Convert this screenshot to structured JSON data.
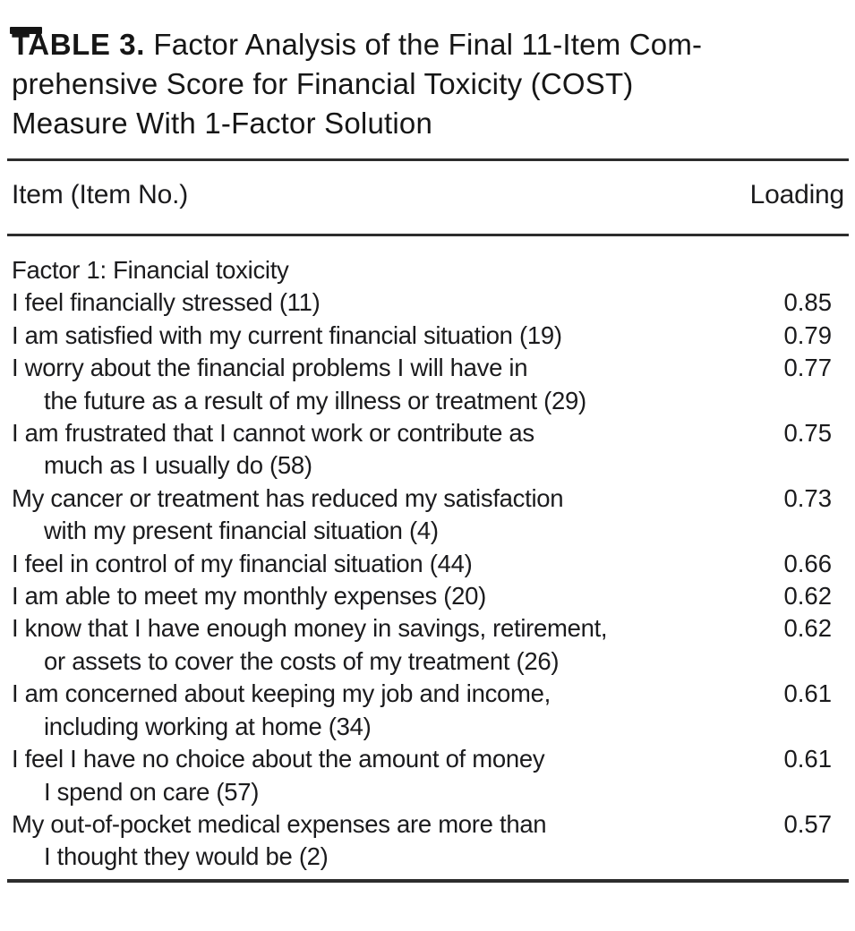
{
  "title": {
    "label": "TABLE 3.",
    "text": "Factor Analysis of the Final 11-Item Com-\nprehensive Score for Financial Toxicity (COST)\nMeasure With 1-Factor Solution"
  },
  "table": {
    "columns": {
      "item": "Item (Item No.)",
      "loading": "Loading"
    },
    "section_header": "Factor 1: Financial toxicity",
    "rows": [
      {
        "item": "I feel financially stressed (11)",
        "loading": "0.85"
      },
      {
        "item": "I am satisfied with my current financial situation (19)",
        "loading": "0.79"
      },
      {
        "item": "I worry about the financial problems I will have in\nthe future as a result of my illness or treatment (29)",
        "loading": "0.77"
      },
      {
        "item": "I am frustrated that I cannot work or contribute as\nmuch as I usually do (58)",
        "loading": "0.75"
      },
      {
        "item": "My cancer or treatment has reduced my satisfaction\nwith my present financial situation (4)",
        "loading": "0.73"
      },
      {
        "item": "I feel in control of my financial situation (44)",
        "loading": "0.66"
      },
      {
        "item": "I am able to meet my monthly expenses (20)",
        "loading": "0.62"
      },
      {
        "item": "I know that I have enough money in savings, retirement,\nor assets to cover the costs of my treatment (26)",
        "loading": "0.62"
      },
      {
        "item": "I am concerned about keeping my job and income,\nincluding working at home (34)",
        "loading": "0.61"
      },
      {
        "item": "I feel I have no choice about the amount of money\nI spend on care (57)",
        "loading": "0.61"
      },
      {
        "item": "My out-of-pocket medical expenses are more than\nI thought they would be (2)",
        "loading": "0.57"
      }
    ]
  },
  "colors": {
    "text": "#1b1b1d",
    "rule": "#2d2d2d",
    "background": "#ffffff"
  }
}
